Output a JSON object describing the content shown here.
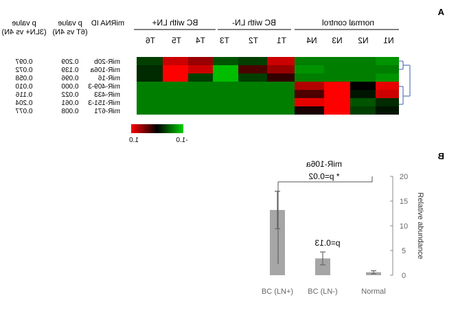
{
  "panel_a": {
    "label": "A",
    "groups": [
      {
        "label": "normal control",
        "columns": [
          "N1",
          "N2",
          "N3",
          "N4"
        ]
      },
      {
        "label": "BC with LN-",
        "columns": [
          "T1",
          "T2",
          "T3"
        ]
      },
      {
        "label": "BC with LN+",
        "columns": [
          "T4",
          "T5",
          "T6"
        ]
      }
    ],
    "id_header": "miRNA ID",
    "pval_headers": [
      {
        "line1": "p value",
        "line2": "(6T vs 4N)"
      },
      {
        "line1": "p value",
        "line2": "(3LN+ vs 4N)"
      }
    ],
    "rows": [
      {
        "id": "miR-20b",
        "p1": "0.209",
        "p2": "0.097"
      },
      {
        "id": "miR-106a",
        "p1": "0.139",
        "p2": "0.072"
      },
      {
        "id": "miR-16",
        "p1": "0.096",
        "p2": "0.058"
      },
      {
        "id": "miR-409-3",
        "p1": "0.000",
        "p2": "0.010"
      },
      {
        "id": "miR-433",
        "p1": "0.022",
        "p2": "0.116"
      },
      {
        "id": "miR-151-3",
        "p1": "0.061",
        "p2": "0.204"
      },
      {
        "id": "miR-671",
        "p1": "0.008",
        "p2": "0.077"
      }
    ],
    "legend": {
      "low": "-1.0",
      "high": "1.0"
    },
    "colors": {
      "green": "#00c000",
      "black": "#000000",
      "red": "#ff0000"
    }
  },
  "panel_b": {
    "label": "B",
    "annotations": {
      "title": "miR-106a",
      "star_p": "* p=0.02",
      "p_small": "p=0.13"
    }
  },
  "chart_data": [
    {
      "type": "heatmap",
      "columns": [
        "N1",
        "N2",
        "N3",
        "N4",
        "T1",
        "T2",
        "T3",
        "T4",
        "T5",
        "T6"
      ],
      "rows": [
        "miR-20b",
        "miR-106a",
        "miR-16",
        "miR-409-3",
        "miR-433",
        "miR-151-3",
        "miR-671"
      ],
      "values": [
        [
          -0.7,
          -0.6,
          -0.6,
          -0.6,
          0.8,
          -0.3,
          -0.4,
          0.6,
          0.8,
          -0.3
        ],
        [
          -0.6,
          -0.6,
          -0.6,
          -0.7,
          0.6,
          0.3,
          -0.9,
          0.8,
          1.0,
          -0.2
        ],
        [
          -0.7,
          -0.6,
          -0.6,
          -0.6,
          0.2,
          -0.3,
          -0.9,
          -0.3,
          1.0,
          -0.2
        ],
        [
          0.9,
          0.0,
          1.0,
          0.7,
          -0.6,
          -0.6,
          -0.6,
          -0.6,
          -0.6,
          -0.6
        ],
        [
          0.8,
          -0.1,
          1.0,
          0.3,
          -0.6,
          -0.6,
          -0.6,
          -0.6,
          -0.6,
          -0.6
        ],
        [
          -0.2,
          -0.4,
          1.0,
          0.9,
          -0.6,
          -0.6,
          -0.6,
          -0.6,
          -0.6,
          -0.6
        ],
        [
          -0.1,
          -0.3,
          1.0,
          0.1,
          -0.6,
          -0.6,
          -0.6,
          -0.6,
          -0.6,
          -0.6
        ]
      ],
      "color_scale": {
        "min": -1.0,
        "max": 1.0
      }
    },
    {
      "type": "bar",
      "categories": [
        "Normal",
        "BC (LN-)",
        "BC (LN+)"
      ],
      "values": [
        0.6,
        3.4,
        13.2
      ],
      "errors": [
        0.3,
        1.3,
        3.8
      ],
      "ylabel": "Relative abundance",
      "ylim": [
        0,
        20
      ],
      "yticks": [
        "0",
        "5",
        "10",
        "15",
        "20"
      ],
      "bar_color": "#a6a6a6"
    }
  ]
}
